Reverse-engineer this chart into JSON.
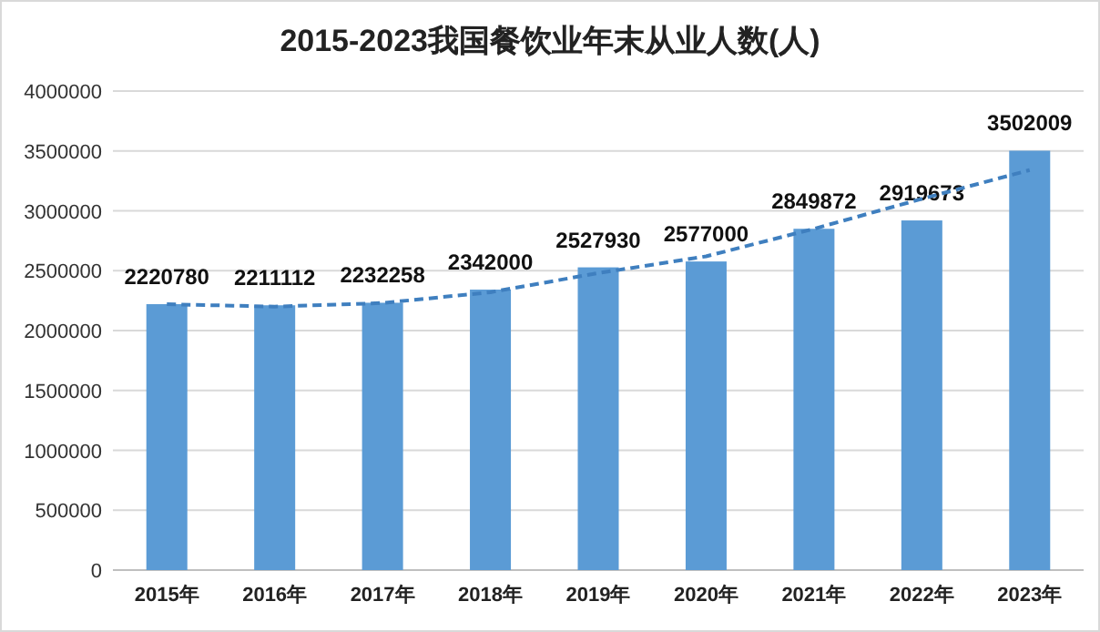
{
  "chart_data": {
    "type": "bar",
    "title": "2015-2023我国餐饮业年末从业人数(人)",
    "categories": [
      "2015年",
      "2016年",
      "2017年",
      "2018年",
      "2019年",
      "2020年",
      "2021年",
      "2022年",
      "2023年"
    ],
    "series": [
      {
        "color": "#5b9bd5",
        "values": [
          2220780,
          2211112,
          2232258,
          2342000,
          2527930,
          2577000,
          2849872,
          2919673,
          3502009
        ],
        "data_labels": true
      },
      {
        "type": "line",
        "color": "#3f7fbf",
        "line_style": "dashed",
        "marker": "none",
        "values": [
          2220000,
          2200000,
          2230000,
          2320000,
          2480000,
          2620000,
          2850000,
          3100000,
          3340000
        ]
      }
    ],
    "ylim": [
      0,
      4000000
    ],
    "yticks": [
      0,
      500000,
      1000000,
      1500000,
      2000000,
      2500000,
      3000000,
      3500000,
      4000000
    ],
    "grid": "y"
  }
}
